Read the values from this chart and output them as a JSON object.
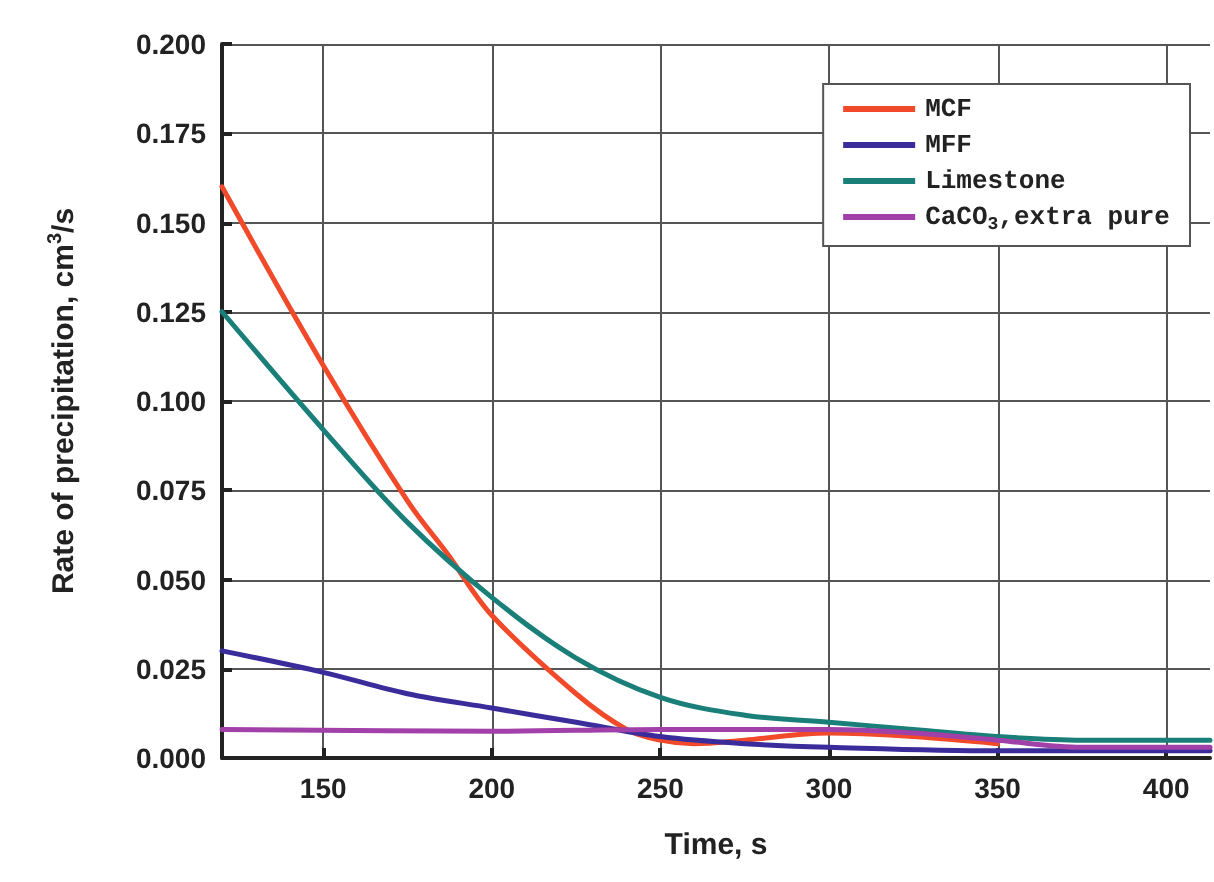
{
  "chart_data": {
    "type": "line",
    "xlabel": "Time, s",
    "ylabel": "Rate of precipitation, cm$^{3}$/s",
    "xlim": [
      120,
      413
    ],
    "xticks": [
      150,
      200,
      250,
      300,
      350,
      400
    ],
    "ylim": [
      0,
      0.2
    ],
    "yticks": [
      {
        "value": 0,
        "label": "0.000"
      },
      {
        "value": 0.025,
        "label": "0.025"
      },
      {
        "value": 0.05,
        "label": "0.050"
      },
      {
        "value": 0.075,
        "label": "0.075"
      },
      {
        "value": 0.1,
        "label": "0.100"
      },
      {
        "value": 0.125,
        "label": "0.125"
      },
      {
        "value": 0.15,
        "label": "0.150"
      },
      {
        "value": 0.175,
        "label": "0.175"
      },
      {
        "value": 0.2,
        "label": "0.200"
      }
    ],
    "grid": true,
    "legend": "top right",
    "marker": "none",
    "line_style": "solid",
    "series": [
      {
        "name": "MCF",
        "color": "#f04a2a",
        "x": [
          120,
          150,
          175,
          187,
          200,
          225,
          240,
          250,
          260,
          275,
          300,
          325,
          350
        ],
        "values": [
          0.16,
          0.11,
          0.072,
          0.057,
          0.04,
          0.018,
          0.008,
          0.005,
          0.004,
          0.005,
          0.007,
          0.006,
          0.004
        ]
      },
      {
        "name": "MFF",
        "color": "#3b2c9c",
        "x": [
          120,
          150,
          175,
          200,
          225,
          250,
          275,
          300,
          350,
          400,
          413
        ],
        "values": [
          0.03,
          0.024,
          0.018,
          0.014,
          0.01,
          0.006,
          0.004,
          0.003,
          0.002,
          0.002,
          0.002
        ]
      },
      {
        "name": "Limestone",
        "color": "#1a7f78",
        "x": [
          120,
          150,
          175,
          200,
          225,
          250,
          275,
          300,
          325,
          350,
          375,
          400,
          413
        ],
        "values": [
          0.125,
          0.092,
          0.066,
          0.045,
          0.028,
          0.017,
          0.012,
          0.01,
          0.008,
          0.006,
          0.005,
          0.005,
          0.005
        ]
      },
      {
        "name": "CaCO$_{3}$,extra pure",
        "color": "#a040a8",
        "x": [
          120,
          200,
          250,
          300,
          325,
          350,
          375,
          400,
          413
        ],
        "values": [
          0.008,
          0.0075,
          0.008,
          0.008,
          0.007,
          0.005,
          0.003,
          0.003,
          0.003
        ]
      }
    ]
  }
}
